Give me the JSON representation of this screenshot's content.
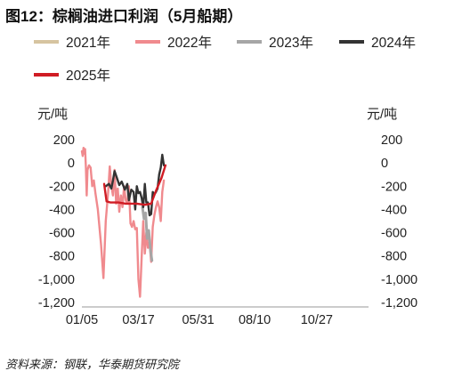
{
  "title": "图12：棕榈油进口利润（5月船期）",
  "source": "资料来源：钢联，华泰期货研究院",
  "chart_data": {
    "type": "line",
    "y_unit_left": "元/吨",
    "y_unit_right": "元/吨",
    "ylim": [
      -1200,
      200
    ],
    "yticks": [
      200,
      0,
      -200,
      -400,
      -600,
      -800,
      -1000,
      -1200
    ],
    "ytick_labels": [
      "200",
      "0",
      "-200",
      "-400",
      "-600",
      "-800",
      "-1,000",
      "-1,200"
    ],
    "xlim": [
      "01/05",
      "12/31"
    ],
    "xticks": [
      "01/05",
      "03/17",
      "05/31",
      "08/10",
      "10/27"
    ],
    "grid": false,
    "legend_position": "top",
    "series": [
      {
        "name": "2021年",
        "color": "#d6c4a0",
        "points": []
      },
      {
        "name": "2022年",
        "color": "#f08a8e",
        "points": [
          [
            "01/05",
            100
          ],
          [
            "01/06",
            60
          ],
          [
            "01/07",
            130
          ],
          [
            "01/08",
            80
          ],
          [
            "01/09",
            120
          ],
          [
            "01/10",
            -40
          ],
          [
            "01/11",
            -280
          ],
          [
            "01/12",
            -60
          ],
          [
            "01/14",
            -20
          ],
          [
            "01/16",
            -40
          ],
          [
            "01/18",
            -200
          ],
          [
            "01/20",
            -150
          ],
          [
            "01/22",
            -260
          ],
          [
            "01/25",
            -400
          ],
          [
            "01/29",
            -700
          ],
          [
            "02/01",
            -990
          ],
          [
            "02/04",
            -500
          ],
          [
            "02/07",
            -250
          ],
          [
            "02/09",
            -30
          ],
          [
            "02/11",
            -200
          ],
          [
            "02/13",
            -280
          ],
          [
            "02/15",
            -60
          ],
          [
            "02/17",
            -350
          ],
          [
            "02/19",
            -220
          ],
          [
            "02/21",
            -420
          ],
          [
            "02/23",
            -280
          ],
          [
            "02/25",
            -380
          ],
          [
            "02/27",
            -200
          ],
          [
            "03/01",
            -320
          ],
          [
            "03/03",
            -350
          ],
          [
            "03/05",
            -200
          ],
          [
            "03/07",
            -520
          ],
          [
            "03/09",
            -550
          ],
          [
            "03/11",
            -500
          ],
          [
            "03/13",
            -570
          ],
          [
            "03/15",
            -560
          ],
          [
            "03/17",
            -1000
          ],
          [
            "03/19",
            -1150
          ],
          [
            "03/21",
            -820
          ],
          [
            "03/23",
            -500
          ],
          [
            "03/25",
            -780
          ],
          [
            "03/27",
            -600
          ],
          [
            "03/29",
            -730
          ],
          [
            "03/31",
            -680
          ],
          [
            "04/02",
            -850
          ],
          [
            "04/04",
            -550
          ],
          [
            "04/06",
            -450
          ],
          [
            "04/08",
            -380
          ],
          [
            "04/10",
            -330
          ],
          [
            "04/12",
            -380
          ],
          [
            "04/14",
            -500
          ],
          [
            "04/16",
            -250
          ],
          [
            "04/18",
            -150
          ]
        ]
      },
      {
        "name": "2023年",
        "color": "#a6a6a6",
        "points": [
          [
            "03/22",
            -380
          ],
          [
            "03/24",
            -480
          ],
          [
            "03/26",
            -430
          ],
          [
            "03/28",
            -650
          ],
          [
            "03/30",
            -580
          ],
          [
            "04/01",
            -740
          ],
          [
            "04/03",
            -840
          ]
        ]
      },
      {
        "name": "2024年",
        "color": "#333333",
        "points": [
          [
            "02/04",
            -200
          ],
          [
            "02/08",
            -180
          ],
          [
            "02/11",
            -220
          ],
          [
            "02/13",
            -150
          ],
          [
            "02/15",
            -70
          ],
          [
            "02/18",
            -130
          ],
          [
            "02/21",
            -190
          ],
          [
            "02/24",
            -160
          ],
          [
            "02/28",
            -230
          ],
          [
            "03/03",
            -180
          ],
          [
            "03/05",
            -320
          ],
          [
            "03/08",
            -230
          ],
          [
            "03/11",
            -250
          ],
          [
            "03/13",
            -400
          ],
          [
            "03/15",
            -200
          ],
          [
            "03/17",
            -260
          ],
          [
            "03/19",
            -250
          ],
          [
            "03/21",
            -300
          ],
          [
            "03/23",
            -380
          ],
          [
            "03/25",
            -180
          ],
          [
            "03/27",
            -340
          ],
          [
            "03/29",
            -340
          ],
          [
            "03/31",
            -450
          ],
          [
            "04/02",
            -440
          ],
          [
            "04/04",
            -250
          ],
          [
            "04/06",
            -270
          ],
          [
            "04/08",
            -250
          ],
          [
            "04/10",
            -220
          ],
          [
            "04/12",
            -100
          ],
          [
            "04/14",
            -40
          ],
          [
            "04/16",
            70
          ],
          [
            "04/18",
            -20
          ]
        ]
      },
      {
        "name": "2025年",
        "color": "#d01c24",
        "points": [
          [
            "02/02",
            -180
          ],
          [
            "02/05",
            -330
          ],
          [
            "02/10",
            -340
          ],
          [
            "02/20",
            -340
          ],
          [
            "03/01",
            -350
          ],
          [
            "03/15",
            -350
          ],
          [
            "03/25",
            -360
          ],
          [
            "04/02",
            -350
          ],
          [
            "04/08",
            -240
          ],
          [
            "04/15",
            -130
          ],
          [
            "04/20",
            -20
          ]
        ]
      }
    ]
  }
}
